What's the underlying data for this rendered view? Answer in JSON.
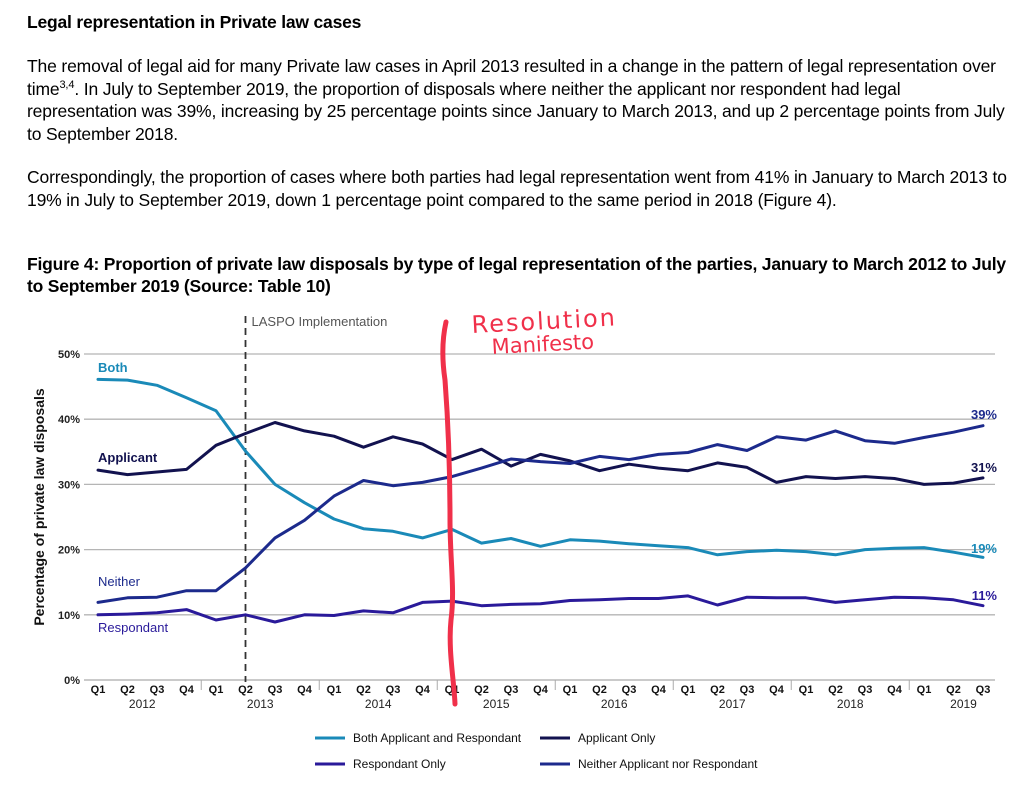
{
  "document": {
    "heading": "Legal representation in Private law cases",
    "paragraph1_part1": "The removal of legal aid for many Private law cases in April 2013 resulted in a change in the pattern of legal representation over time",
    "paragraph1_sup": "3,4",
    "paragraph1_part2": ". In July to September 2019, the proportion of disposals where neither the applicant nor respondent had legal representation was 39%, increasing by 25 percentage points since January to March 2013, and up 2 percentage points from July to September 2018.",
    "paragraph2": "Correspondingly, the proportion of cases where both parties had legal representation went from 41% in January to March 2013 to 19% in July to September 2019, down 1 percentage point compared to the same period in 2018 (Figure 4).",
    "figure_title": "Figure 4: Proportion of private law disposals by type of legal representation of the parties, January to March 2012 to July to September 2019 (Source: Table 10)"
  },
  "chart_data": {
    "type": "line",
    "title": "Figure 4: Proportion of private law disposals by type of legal representation of the parties, January to March 2012 to July to September 2019 (Source: Table 10)",
    "xlabel": "",
    "ylabel": "Percentage of private law disposals",
    "ylim": [
      0,
      50
    ],
    "yticks": [
      0,
      10,
      20,
      30,
      40,
      50
    ],
    "ytick_labels": [
      "0%",
      "10%",
      "20%",
      "30%",
      "40%",
      "50%"
    ],
    "grid": true,
    "categories": [
      "Q1",
      "Q2",
      "Q3",
      "Q4",
      "Q1",
      "Q2",
      "Q3",
      "Q4",
      "Q1",
      "Q2",
      "Q3",
      "Q4",
      "Q1",
      "Q2",
      "Q3",
      "Q4",
      "Q1",
      "Q2",
      "Q3",
      "Q4",
      "Q1",
      "Q2",
      "Q3",
      "Q4",
      "Q1",
      "Q2",
      "Q3",
      "Q4",
      "Q1",
      "Q2",
      "Q3"
    ],
    "years": [
      {
        "label": "2012",
        "start": 0,
        "end": 3
      },
      {
        "label": "2013",
        "start": 4,
        "end": 7
      },
      {
        "label": "2014",
        "start": 8,
        "end": 11
      },
      {
        "label": "2015",
        "start": 12,
        "end": 15
      },
      {
        "label": "2016",
        "start": 16,
        "end": 19
      },
      {
        "label": "2017",
        "start": 20,
        "end": 23
      },
      {
        "label": "2018",
        "start": 24,
        "end": 27
      },
      {
        "label": "2019",
        "start": 28,
        "end": 30
      }
    ],
    "series": [
      {
        "name": "Both Applicant and Respondant",
        "short_label": "Both",
        "color": "#1a8ab8",
        "end_label": "19%",
        "values": [
          46.1,
          46.0,
          45.2,
          43.3,
          41.3,
          35.1,
          30.0,
          27.2,
          24.7,
          23.2,
          22.8,
          21.8,
          23.1,
          21.0,
          21.7,
          20.5,
          21.5,
          21.3,
          20.9,
          20.6,
          20.3,
          19.2,
          19.7,
          19.9,
          19.7,
          19.2,
          20.0,
          20.2,
          20.3,
          19.6,
          18.8
        ]
      },
      {
        "name": "Applicant Only",
        "short_label": "Applicant",
        "color": "#12124f",
        "end_label": "31%",
        "values": [
          32.2,
          31.5,
          31.9,
          32.3,
          36.0,
          37.8,
          39.5,
          38.2,
          37.4,
          35.7,
          37.3,
          36.2,
          33.8,
          35.4,
          32.8,
          34.6,
          33.6,
          32.1,
          33.1,
          32.5,
          32.1,
          33.3,
          32.6,
          30.3,
          31.2,
          30.9,
          31.2,
          30.9,
          30.0,
          30.2,
          31.0
        ]
      },
      {
        "name": "Respondant Only",
        "short_label": "Respondant",
        "color": "#2a1a9a",
        "end_label": "11%",
        "values": [
          10.0,
          10.1,
          10.3,
          10.8,
          9.2,
          10.0,
          8.9,
          10.0,
          9.9,
          10.6,
          10.3,
          11.9,
          12.1,
          11.4,
          11.6,
          11.7,
          12.2,
          12.3,
          12.5,
          12.5,
          12.9,
          11.5,
          12.7,
          12.6,
          12.6,
          11.9,
          12.3,
          12.7,
          12.6,
          12.3,
          11.4
        ]
      },
      {
        "name": "Neither Applicant nor Respondant",
        "short_label": "Neither",
        "color": "#1c2a8c",
        "end_label": "39%",
        "values": [
          11.9,
          12.6,
          12.7,
          13.7,
          13.7,
          17.2,
          21.8,
          24.5,
          28.2,
          30.6,
          29.8,
          30.3,
          31.2,
          32.5,
          33.9,
          33.5,
          33.2,
          34.3,
          33.8,
          34.6,
          34.9,
          36.1,
          35.2,
          37.3,
          36.8,
          38.2,
          36.7,
          36.3,
          37.2,
          38.0,
          39.0
        ]
      }
    ],
    "annotations": [
      {
        "text": "LASPO Implementation",
        "at_index": 5,
        "style": "dashed-vertical"
      },
      {
        "text": "Resolution Manifesto",
        "at_index": 12,
        "style": "handwritten-red-vertical",
        "color": "#f0304a"
      }
    ],
    "legend": {
      "placement": "bottom",
      "items": [
        "Both Applicant and Respondant",
        "Applicant Only",
        "Respondant Only",
        "Neither Applicant nor Respondant"
      ]
    }
  }
}
